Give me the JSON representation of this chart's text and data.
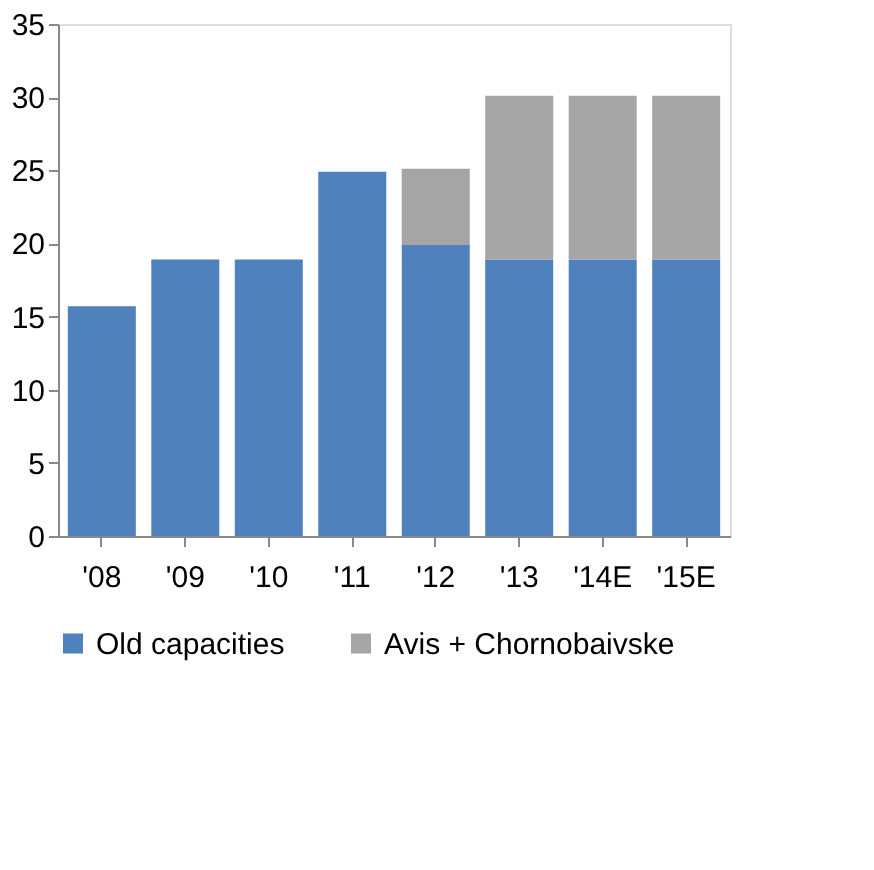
{
  "chart_data": {
    "type": "bar",
    "stacked": true,
    "categories": [
      "'08",
      "'09",
      "'10",
      "'11",
      "'12",
      "'13",
      "'14E",
      "'15E"
    ],
    "series": [
      {
        "name": "Old capacities",
        "color": "#4f81bd",
        "values": [
          15.7,
          18.9,
          18.9,
          24.9,
          19.9,
          18.9,
          18.9,
          18.9
        ]
      },
      {
        "name": "Avis + Chornobaivske",
        "color": "#a5a5a5",
        "values": [
          null,
          null,
          null,
          null,
          5.2,
          11.2,
          11.2,
          11.2
        ]
      }
    ],
    "ylim": [
      0,
      35
    ],
    "yticks": [
      0,
      5,
      10,
      15,
      20,
      25,
      30,
      35
    ],
    "grid": false,
    "legend": "bottom"
  }
}
